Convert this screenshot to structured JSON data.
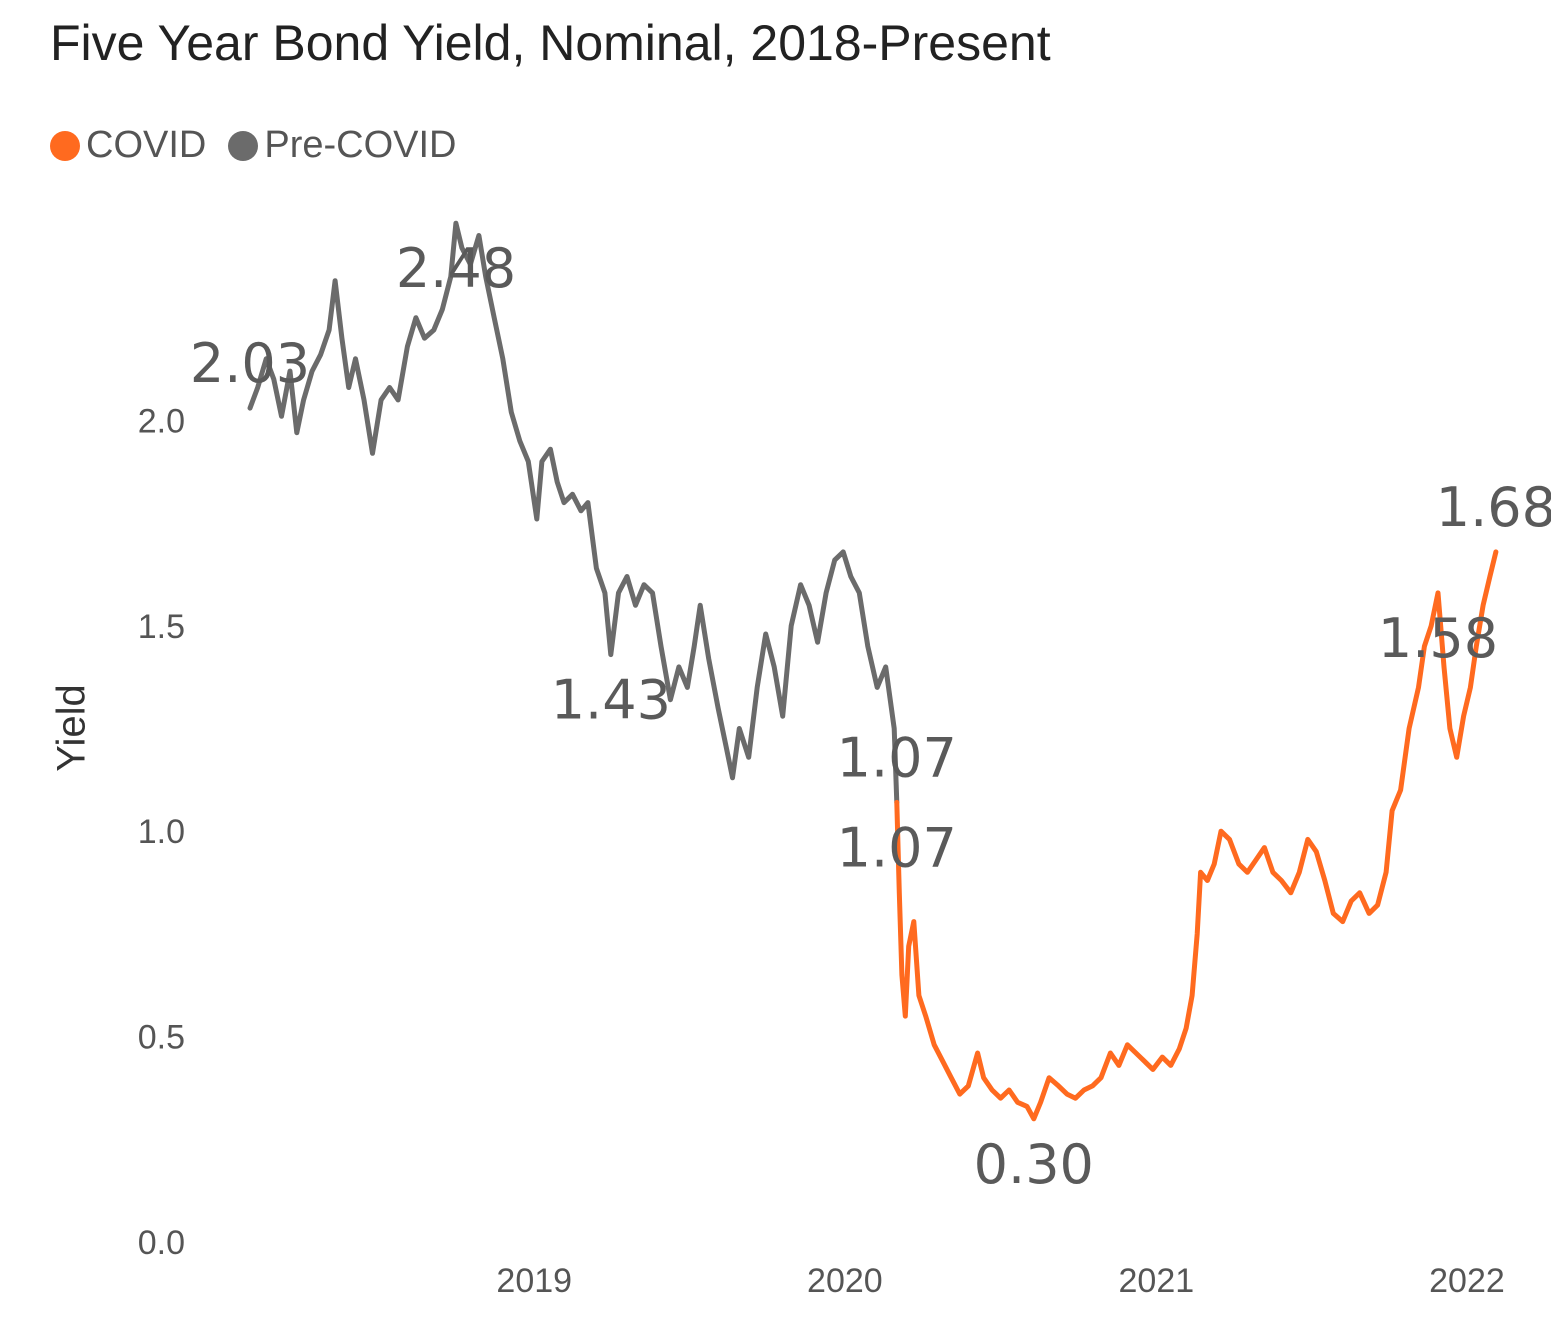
{
  "chart_data": {
    "type": "line",
    "title": "Five Year Bond Yield, Nominal, 2018-Present",
    "xlabel": "",
    "ylabel": "Yield",
    "xlim": [
      "2018-02-01",
      "2022-02-10"
    ],
    "ylim": [
      0,
      2.5
    ],
    "yticks": [
      {
        "value": 0.0,
        "label": "0.0"
      },
      {
        "value": 0.5,
        "label": "0.5"
      },
      {
        "value": 1.0,
        "label": "1.0"
      },
      {
        "value": 1.5,
        "label": "1.5"
      },
      {
        "value": 2.0,
        "label": "2.0"
      }
    ],
    "xticks": [
      {
        "date": "2019-01-01",
        "label": "2019"
      },
      {
        "date": "2020-01-01",
        "label": "2020"
      },
      {
        "date": "2021-01-01",
        "label": "2021"
      },
      {
        "date": "2022-01-01",
        "label": "2022"
      }
    ],
    "grid": false,
    "legend_position": "top-left",
    "series": [
      {
        "name": "Pre-COVID",
        "color": "#6b6b6b",
        "points": [
          [
            "2018-02-01",
            2.03
          ],
          [
            "2018-02-10",
            2.08
          ],
          [
            "2018-02-20",
            2.15
          ],
          [
            "2018-03-01",
            2.1
          ],
          [
            "2018-03-10",
            2.01
          ],
          [
            "2018-03-20",
            2.12
          ],
          [
            "2018-03-28",
            1.97
          ],
          [
            "2018-04-05",
            2.05
          ],
          [
            "2018-04-15",
            2.12
          ],
          [
            "2018-04-25",
            2.16
          ],
          [
            "2018-05-05",
            2.22
          ],
          [
            "2018-05-12",
            2.34
          ],
          [
            "2018-05-20",
            2.2
          ],
          [
            "2018-05-28",
            2.08
          ],
          [
            "2018-06-05",
            2.15
          ],
          [
            "2018-06-15",
            2.05
          ],
          [
            "2018-06-25",
            1.92
          ],
          [
            "2018-07-05",
            2.05
          ],
          [
            "2018-07-15",
            2.08
          ],
          [
            "2018-07-25",
            2.05
          ],
          [
            "2018-08-05",
            2.18
          ],
          [
            "2018-08-15",
            2.25
          ],
          [
            "2018-08-25",
            2.2
          ],
          [
            "2018-09-05",
            2.22
          ],
          [
            "2018-09-15",
            2.27
          ],
          [
            "2018-09-25",
            2.35
          ],
          [
            "2018-10-01",
            2.48
          ],
          [
            "2018-10-08",
            2.42
          ],
          [
            "2018-10-18",
            2.38
          ],
          [
            "2018-10-28",
            2.45
          ],
          [
            "2018-11-05",
            2.35
          ],
          [
            "2018-11-15",
            2.25
          ],
          [
            "2018-11-25",
            2.15
          ],
          [
            "2018-12-05",
            2.02
          ],
          [
            "2018-12-15",
            1.95
          ],
          [
            "2018-12-25",
            1.9
          ],
          [
            "2019-01-04",
            1.76
          ],
          [
            "2019-01-10",
            1.9
          ],
          [
            "2019-01-20",
            1.93
          ],
          [
            "2019-01-28",
            1.85
          ],
          [
            "2019-02-05",
            1.8
          ],
          [
            "2019-02-15",
            1.82
          ],
          [
            "2019-02-25",
            1.78
          ],
          [
            "2019-03-05",
            1.8
          ],
          [
            "2019-03-15",
            1.64
          ],
          [
            "2019-03-25",
            1.58
          ],
          [
            "2019-04-01",
            1.43
          ],
          [
            "2019-04-10",
            1.58
          ],
          [
            "2019-04-20",
            1.62
          ],
          [
            "2019-04-30",
            1.55
          ],
          [
            "2019-05-10",
            1.6
          ],
          [
            "2019-05-20",
            1.58
          ],
          [
            "2019-05-30",
            1.45
          ],
          [
            "2019-06-10",
            1.32
          ],
          [
            "2019-06-20",
            1.4
          ],
          [
            "2019-06-30",
            1.35
          ],
          [
            "2019-07-08",
            1.45
          ],
          [
            "2019-07-15",
            1.55
          ],
          [
            "2019-07-25",
            1.42
          ],
          [
            "2019-08-05",
            1.3
          ],
          [
            "2019-08-15",
            1.2
          ],
          [
            "2019-08-22",
            1.13
          ],
          [
            "2019-08-30",
            1.25
          ],
          [
            "2019-09-10",
            1.18
          ],
          [
            "2019-09-20",
            1.35
          ],
          [
            "2019-09-30",
            1.48
          ],
          [
            "2019-10-10",
            1.4
          ],
          [
            "2019-10-20",
            1.28
          ],
          [
            "2019-10-30",
            1.5
          ],
          [
            "2019-11-10",
            1.6
          ],
          [
            "2019-11-20",
            1.55
          ],
          [
            "2019-11-30",
            1.46
          ],
          [
            "2019-12-10",
            1.58
          ],
          [
            "2019-12-20",
            1.66
          ],
          [
            "2019-12-30",
            1.68
          ],
          [
            "2020-01-08",
            1.62
          ],
          [
            "2020-01-18",
            1.58
          ],
          [
            "2020-01-28",
            1.45
          ],
          [
            "2020-02-08",
            1.35
          ],
          [
            "2020-02-18",
            1.4
          ],
          [
            "2020-02-28",
            1.25
          ],
          [
            "2020-03-02",
            1.07
          ]
        ]
      },
      {
        "name": "COVID",
        "color": "#ff6a1f",
        "points": [
          [
            "2020-03-02",
            1.07
          ],
          [
            "2020-03-05",
            0.85
          ],
          [
            "2020-03-08",
            0.65
          ],
          [
            "2020-03-12",
            0.55
          ],
          [
            "2020-03-16",
            0.72
          ],
          [
            "2020-03-22",
            0.78
          ],
          [
            "2020-03-28",
            0.6
          ],
          [
            "2020-04-05",
            0.55
          ],
          [
            "2020-04-15",
            0.48
          ],
          [
            "2020-04-25",
            0.44
          ],
          [
            "2020-05-05",
            0.4
          ],
          [
            "2020-05-15",
            0.36
          ],
          [
            "2020-05-25",
            0.38
          ],
          [
            "2020-06-05",
            0.46
          ],
          [
            "2020-06-12",
            0.4
          ],
          [
            "2020-06-22",
            0.37
          ],
          [
            "2020-07-02",
            0.35
          ],
          [
            "2020-07-12",
            0.37
          ],
          [
            "2020-07-22",
            0.34
          ],
          [
            "2020-08-02",
            0.33
          ],
          [
            "2020-08-10",
            0.3
          ],
          [
            "2020-08-18",
            0.34
          ],
          [
            "2020-08-28",
            0.4
          ],
          [
            "2020-09-08",
            0.38
          ],
          [
            "2020-09-18",
            0.36
          ],
          [
            "2020-09-28",
            0.35
          ],
          [
            "2020-10-08",
            0.37
          ],
          [
            "2020-10-18",
            0.38
          ],
          [
            "2020-10-28",
            0.4
          ],
          [
            "2020-11-08",
            0.46
          ],
          [
            "2020-11-18",
            0.43
          ],
          [
            "2020-11-28",
            0.48
          ],
          [
            "2020-12-08",
            0.46
          ],
          [
            "2020-12-18",
            0.44
          ],
          [
            "2020-12-28",
            0.42
          ],
          [
            "2021-01-08",
            0.45
          ],
          [
            "2021-01-18",
            0.43
          ],
          [
            "2021-01-28",
            0.47
          ],
          [
            "2021-02-05",
            0.52
          ],
          [
            "2021-02-12",
            0.6
          ],
          [
            "2021-02-18",
            0.75
          ],
          [
            "2021-02-22",
            0.9
          ],
          [
            "2021-03-02",
            0.88
          ],
          [
            "2021-03-10",
            0.92
          ],
          [
            "2021-03-18",
            1.0
          ],
          [
            "2021-03-28",
            0.98
          ],
          [
            "2021-04-08",
            0.92
          ],
          [
            "2021-04-18",
            0.9
          ],
          [
            "2021-04-28",
            0.93
          ],
          [
            "2021-05-08",
            0.96
          ],
          [
            "2021-05-18",
            0.9
          ],
          [
            "2021-05-28",
            0.88
          ],
          [
            "2021-06-08",
            0.85
          ],
          [
            "2021-06-18",
            0.9
          ],
          [
            "2021-06-28",
            0.98
          ],
          [
            "2021-07-08",
            0.95
          ],
          [
            "2021-07-18",
            0.88
          ],
          [
            "2021-07-28",
            0.8
          ],
          [
            "2021-08-08",
            0.78
          ],
          [
            "2021-08-18",
            0.83
          ],
          [
            "2021-08-28",
            0.85
          ],
          [
            "2021-09-08",
            0.8
          ],
          [
            "2021-09-18",
            0.82
          ],
          [
            "2021-09-28",
            0.9
          ],
          [
            "2021-10-05",
            1.05
          ],
          [
            "2021-10-15",
            1.1
          ],
          [
            "2021-10-25",
            1.25
          ],
          [
            "2021-11-05",
            1.35
          ],
          [
            "2021-11-12",
            1.45
          ],
          [
            "2021-11-20",
            1.5
          ],
          [
            "2021-11-28",
            1.58
          ],
          [
            "2021-12-05",
            1.4
          ],
          [
            "2021-12-12",
            1.25
          ],
          [
            "2021-12-20",
            1.18
          ],
          [
            "2021-12-28",
            1.28
          ],
          [
            "2022-01-05",
            1.35
          ],
          [
            "2022-01-12",
            1.45
          ],
          [
            "2022-01-20",
            1.55
          ],
          [
            "2022-01-28",
            1.62
          ],
          [
            "2022-02-04",
            1.68
          ]
        ]
      }
    ],
    "annotations": [
      {
        "text": "2.03",
        "date": "2018-02-01",
        "value": 2.03,
        "anchor": "above"
      },
      {
        "text": "2.48",
        "date": "2018-10-01",
        "value": 2.48,
        "anchor": "below"
      },
      {
        "text": "1.43",
        "date": "2019-04-01",
        "value": 1.43,
        "anchor": "below"
      },
      {
        "text": "1.07",
        "date": "2020-03-02",
        "value": 1.07,
        "anchor": "above"
      },
      {
        "text": "1.07",
        "date": "2020-03-02",
        "value": 1.07,
        "anchor": "below"
      },
      {
        "text": "0.30",
        "date": "2020-08-10",
        "value": 0.3,
        "anchor": "below"
      },
      {
        "text": "1.58",
        "date": "2021-11-28",
        "value": 1.58,
        "anchor": "below"
      },
      {
        "text": "1.68",
        "date": "2022-02-04",
        "value": 1.68,
        "anchor": "above"
      }
    ]
  }
}
